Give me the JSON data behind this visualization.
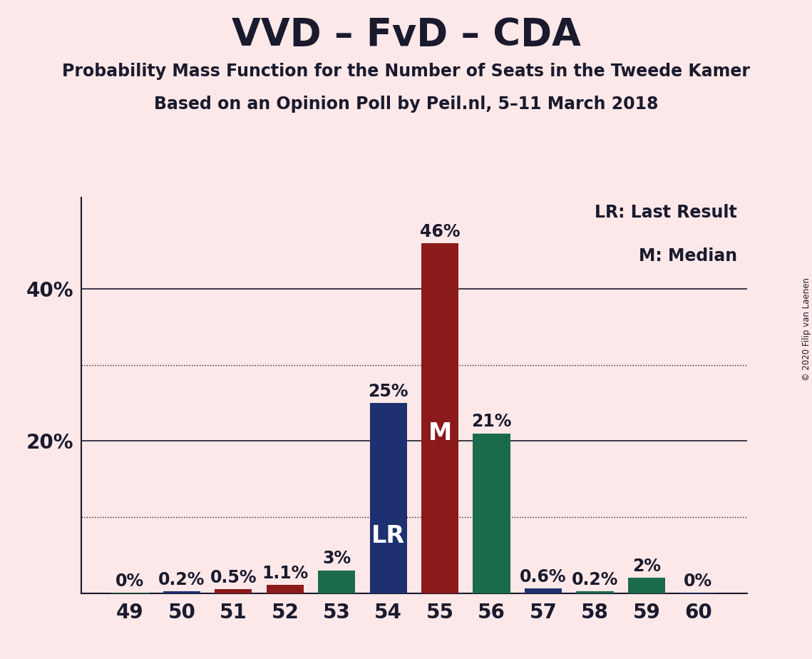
{
  "title": "VVD – FvD – CDA",
  "subtitle1": "Probability Mass Function for the Number of Seats in the Tweede Kamer",
  "subtitle2": "Based on an Opinion Poll by Peil.nl, 5–11 March 2018",
  "copyright": "© 2020 Filip van Laenen",
  "categories": [
    49,
    50,
    51,
    52,
    53,
    54,
    55,
    56,
    57,
    58,
    59,
    60
  ],
  "values": [
    0.05,
    0.2,
    0.5,
    1.1,
    3.0,
    25.0,
    46.0,
    21.0,
    0.6,
    0.2,
    2.0,
    0.05
  ],
  "labels": [
    "0%",
    "0.2%",
    "0.5%",
    "1.1%",
    "3%",
    "25%",
    "46%",
    "21%",
    "0.6%",
    "0.2%",
    "2%",
    "0%"
  ],
  "bar_colors": [
    "#1a6b4a",
    "#1f3070",
    "#8b1a1a",
    "#8b1a1a",
    "#1a6b4a",
    "#1f3070",
    "#8b1a1a",
    "#1a6b4a",
    "#1f3070",
    "#1a6b4a",
    "#1a6b4a",
    "#1f3070"
  ],
  "background_color": "#fce8e8",
  "ylim": [
    0,
    52
  ],
  "lr_bar_index": 5,
  "median_bar_index": 6,
  "lr_label": "LR",
  "median_label": "M",
  "legend_lr": "LR: Last Result",
  "legend_m": "M: Median",
  "dotted_lines": [
    10,
    30
  ],
  "solid_lines": [
    20,
    40
  ],
  "title_fontsize": 38,
  "subtitle_fontsize": 17,
  "bar_width": 0.72,
  "label_fontsize": 17,
  "axis_fontsize": 20,
  "dark_color": "#1a1a2e"
}
